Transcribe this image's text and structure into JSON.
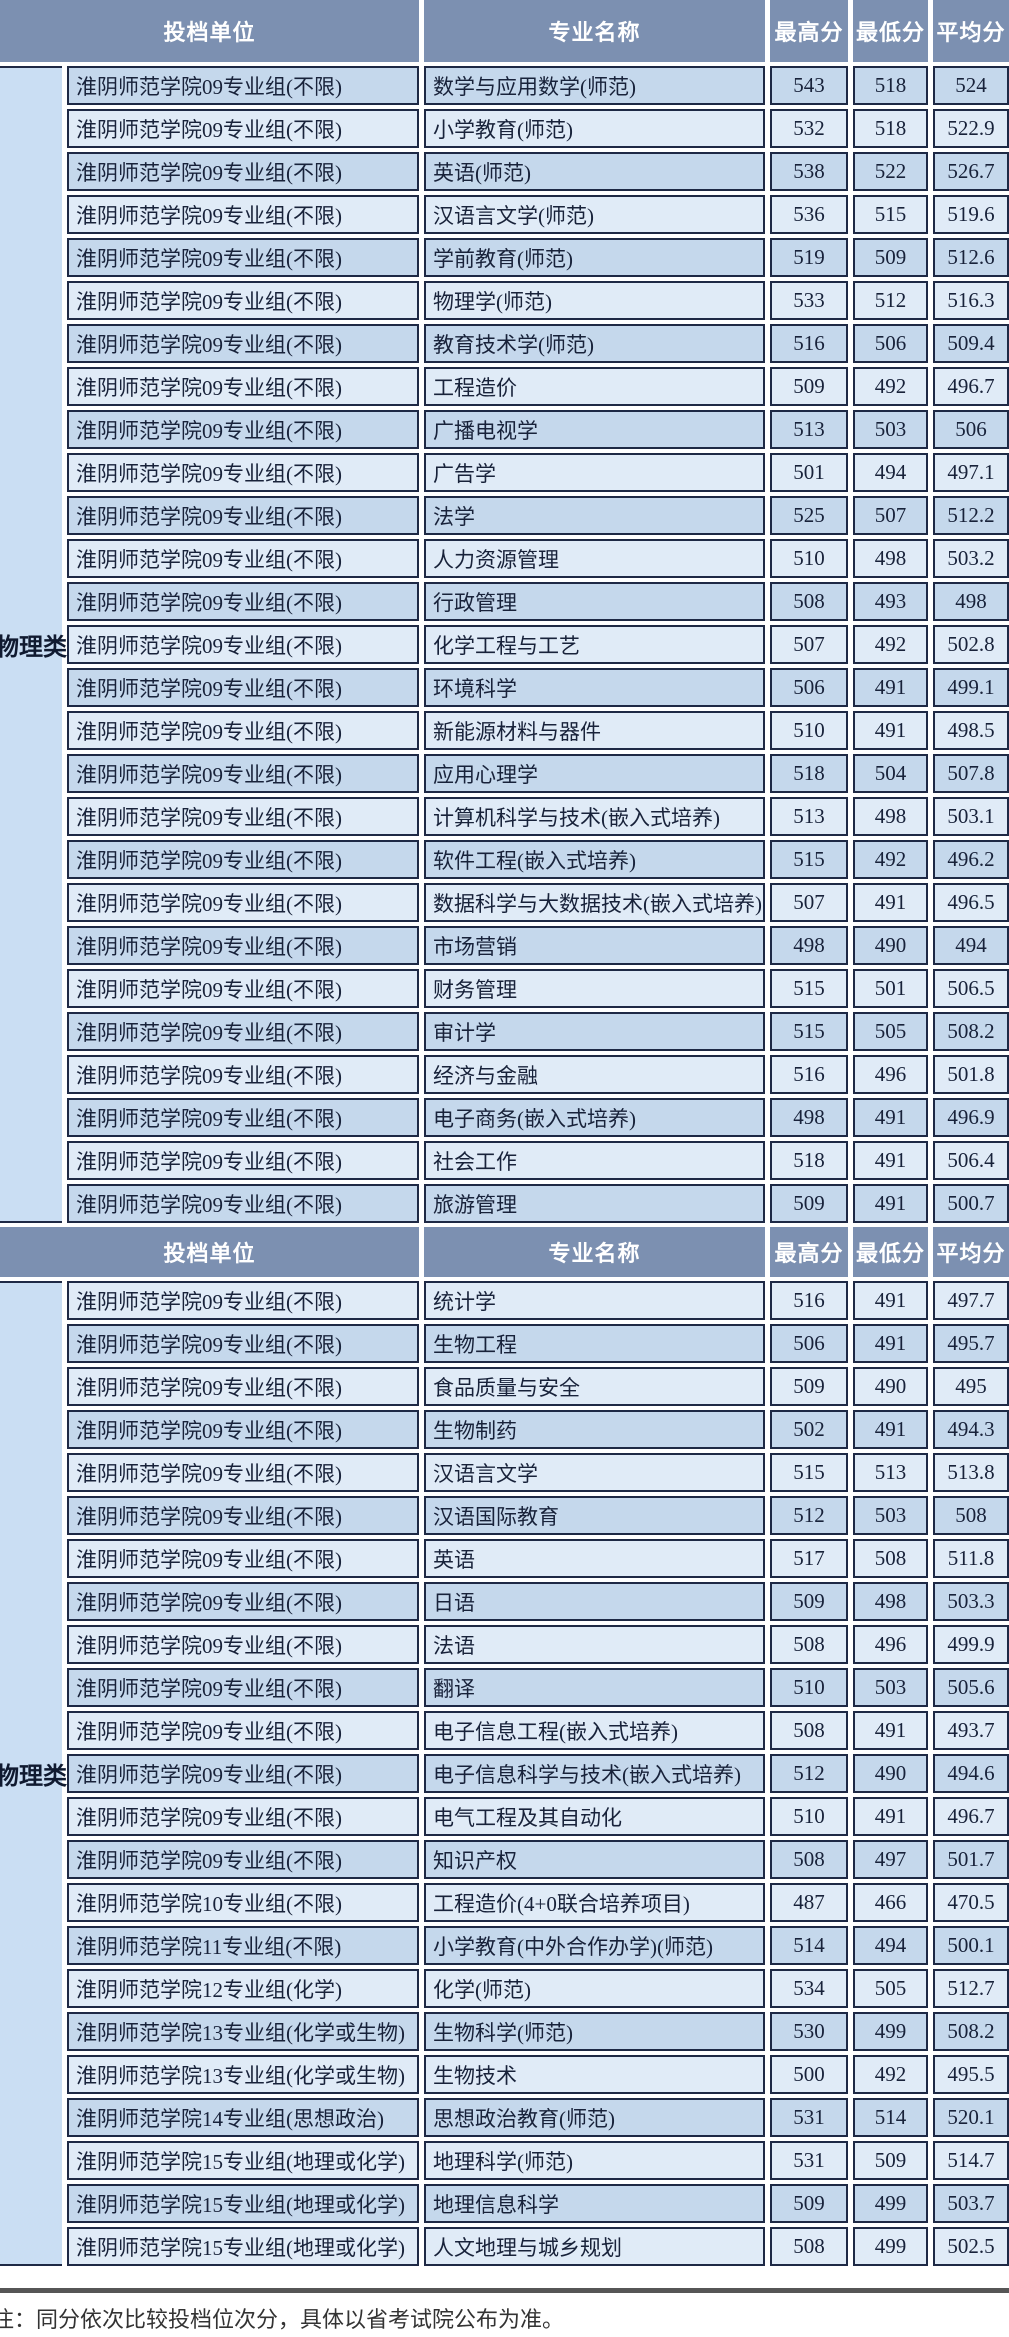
{
  "page": {
    "category_label": "物理类",
    "note": "注：同分依次比较投档位次分，具体以省考试院公布为准。",
    "columns": {
      "unit": "投档单位",
      "major": "专业名称",
      "high": "最高分",
      "low": "最低分",
      "avg": "平均分"
    }
  },
  "tables": [
    {
      "first_row_shade": "dark",
      "rows": [
        {
          "unit": "淮阴师范学院09专业组(不限)",
          "major": "数学与应用数学(师范)",
          "high": "543",
          "low": "518",
          "avg": "524"
        },
        {
          "unit": "淮阴师范学院09专业组(不限)",
          "major": "小学教育(师范)",
          "high": "532",
          "low": "518",
          "avg": "522.9"
        },
        {
          "unit": "淮阴师范学院09专业组(不限)",
          "major": "英语(师范)",
          "high": "538",
          "low": "522",
          "avg": "526.7"
        },
        {
          "unit": "淮阴师范学院09专业组(不限)",
          "major": "汉语言文学(师范)",
          "high": "536",
          "low": "515",
          "avg": "519.6"
        },
        {
          "unit": "淮阴师范学院09专业组(不限)",
          "major": "学前教育(师范)",
          "high": "519",
          "low": "509",
          "avg": "512.6"
        },
        {
          "unit": "淮阴师范学院09专业组(不限)",
          "major": "物理学(师范)",
          "high": "533",
          "low": "512",
          "avg": "516.3"
        },
        {
          "unit": "淮阴师范学院09专业组(不限)",
          "major": "教育技术学(师范)",
          "high": "516",
          "low": "506",
          "avg": "509.4"
        },
        {
          "unit": "淮阴师范学院09专业组(不限)",
          "major": "工程造价",
          "high": "509",
          "low": "492",
          "avg": "496.7"
        },
        {
          "unit": "淮阴师范学院09专业组(不限)",
          "major": "广播电视学",
          "high": "513",
          "low": "503",
          "avg": "506"
        },
        {
          "unit": "淮阴师范学院09专业组(不限)",
          "major": "广告学",
          "high": "501",
          "low": "494",
          "avg": "497.1"
        },
        {
          "unit": "淮阴师范学院09专业组(不限)",
          "major": "法学",
          "high": "525",
          "low": "507",
          "avg": "512.2"
        },
        {
          "unit": "淮阴师范学院09专业组(不限)",
          "major": "人力资源管理",
          "high": "510",
          "low": "498",
          "avg": "503.2"
        },
        {
          "unit": "淮阴师范学院09专业组(不限)",
          "major": "行政管理",
          "high": "508",
          "low": "493",
          "avg": "498"
        },
        {
          "unit": "淮阴师范学院09专业组(不限)",
          "major": "化学工程与工艺",
          "high": "507",
          "low": "492",
          "avg": "502.8"
        },
        {
          "unit": "淮阴师范学院09专业组(不限)",
          "major": "环境科学",
          "high": "506",
          "low": "491",
          "avg": "499.1"
        },
        {
          "unit": "淮阴师范学院09专业组(不限)",
          "major": "新能源材料与器件",
          "high": "510",
          "low": "491",
          "avg": "498.5"
        },
        {
          "unit": "淮阴师范学院09专业组(不限)",
          "major": "应用心理学",
          "high": "518",
          "low": "504",
          "avg": "507.8"
        },
        {
          "unit": "淮阴师范学院09专业组(不限)",
          "major": "计算机科学与技术(嵌入式培养)",
          "high": "513",
          "low": "498",
          "avg": "503.1"
        },
        {
          "unit": "淮阴师范学院09专业组(不限)",
          "major": "软件工程(嵌入式培养)",
          "high": "515",
          "low": "492",
          "avg": "496.2"
        },
        {
          "unit": "淮阴师范学院09专业组(不限)",
          "major": "数据科学与大数据技术(嵌入式培养)",
          "high": "507",
          "low": "491",
          "avg": "496.5"
        },
        {
          "unit": "淮阴师范学院09专业组(不限)",
          "major": "市场营销",
          "high": "498",
          "low": "490",
          "avg": "494"
        },
        {
          "unit": "淮阴师范学院09专业组(不限)",
          "major": "财务管理",
          "high": "515",
          "low": "501",
          "avg": "506.5"
        },
        {
          "unit": "淮阴师范学院09专业组(不限)",
          "major": "审计学",
          "high": "515",
          "low": "505",
          "avg": "508.2"
        },
        {
          "unit": "淮阴师范学院09专业组(不限)",
          "major": "经济与金融",
          "high": "516",
          "low": "496",
          "avg": "501.8"
        },
        {
          "unit": "淮阴师范学院09专业组(不限)",
          "major": "电子商务(嵌入式培养)",
          "high": "498",
          "low": "491",
          "avg": "496.9"
        },
        {
          "unit": "淮阴师范学院09专业组(不限)",
          "major": "社会工作",
          "high": "518",
          "low": "491",
          "avg": "506.4"
        },
        {
          "unit": "淮阴师范学院09专业组(不限)",
          "major": "旅游管理",
          "high": "509",
          "low": "491",
          "avg": "500.7"
        }
      ]
    },
    {
      "first_row_shade": "light",
      "rows": [
        {
          "unit": "淮阴师范学院09专业组(不限)",
          "major": "统计学",
          "high": "516",
          "low": "491",
          "avg": "497.7"
        },
        {
          "unit": "淮阴师范学院09专业组(不限)",
          "major": "生物工程",
          "high": "506",
          "low": "491",
          "avg": "495.7"
        },
        {
          "unit": "淮阴师范学院09专业组(不限)",
          "major": "食品质量与安全",
          "high": "509",
          "low": "490",
          "avg": "495"
        },
        {
          "unit": "淮阴师范学院09专业组(不限)",
          "major": "生物制药",
          "high": "502",
          "low": "491",
          "avg": "494.3"
        },
        {
          "unit": "淮阴师范学院09专业组(不限)",
          "major": "汉语言文学",
          "high": "515",
          "low": "513",
          "avg": "513.8"
        },
        {
          "unit": "淮阴师范学院09专业组(不限)",
          "major": "汉语国际教育",
          "high": "512",
          "low": "503",
          "avg": "508"
        },
        {
          "unit": "淮阴师范学院09专业组(不限)",
          "major": "英语",
          "high": "517",
          "low": "508",
          "avg": "511.8"
        },
        {
          "unit": "淮阴师范学院09专业组(不限)",
          "major": "日语",
          "high": "509",
          "low": "498",
          "avg": "503.3"
        },
        {
          "unit": "淮阴师范学院09专业组(不限)",
          "major": "法语",
          "high": "508",
          "low": "496",
          "avg": "499.9"
        },
        {
          "unit": "淮阴师范学院09专业组(不限)",
          "major": "翻译",
          "high": "510",
          "low": "503",
          "avg": "505.6"
        },
        {
          "unit": "淮阴师范学院09专业组(不限)",
          "major": "电子信息工程(嵌入式培养)",
          "high": "508",
          "low": "491",
          "avg": "493.7"
        },
        {
          "unit": "淮阴师范学院09专业组(不限)",
          "major": "电子信息科学与技术(嵌入式培养)",
          "high": "512",
          "low": "490",
          "avg": "494.6"
        },
        {
          "unit": "淮阴师范学院09专业组(不限)",
          "major": "电气工程及其自动化",
          "high": "510",
          "low": "491",
          "avg": "496.7"
        },
        {
          "unit": "淮阴师范学院09专业组(不限)",
          "major": "知识产权",
          "high": "508",
          "low": "497",
          "avg": "501.7"
        },
        {
          "unit": "淮阴师范学院10专业组(不限)",
          "major": "工程造价(4+0联合培养项目)",
          "high": "487",
          "low": "466",
          "avg": "470.5"
        },
        {
          "unit": "淮阴师范学院11专业组(不限)",
          "major": "小学教育(中外合作办学)(师范)",
          "high": "514",
          "low": "494",
          "avg": "500.1"
        },
        {
          "unit": "淮阴师范学院12专业组(化学)",
          "major": "化学(师范)",
          "high": "534",
          "low": "505",
          "avg": "512.7"
        },
        {
          "unit": "淮阴师范学院13专业组(化学或生物)",
          "major": "生物科学(师范)",
          "high": "530",
          "low": "499",
          "avg": "508.2"
        },
        {
          "unit": "淮阴师范学院13专业组(化学或生物)",
          "major": "生物技术",
          "high": "500",
          "low": "492",
          "avg": "495.5"
        },
        {
          "unit": "淮阴师范学院14专业组(思想政治)",
          "major": "思想政治教育(师范)",
          "high": "531",
          "low": "514",
          "avg": "520.1"
        },
        {
          "unit": "淮阴师范学院15专业组(地理或化学)",
          "major": "地理科学(师范)",
          "high": "531",
          "low": "509",
          "avg": "514.7"
        },
        {
          "unit": "淮阴师范学院15专业组(地理或化学)",
          "major": "地理信息科学",
          "high": "509",
          "low": "499",
          "avg": "503.7"
        },
        {
          "unit": "淮阴师范学院15专业组(地理或化学)",
          "major": "人文地理与城乡规划",
          "high": "508",
          "low": "499",
          "avg": "502.5"
        }
      ]
    }
  ]
}
